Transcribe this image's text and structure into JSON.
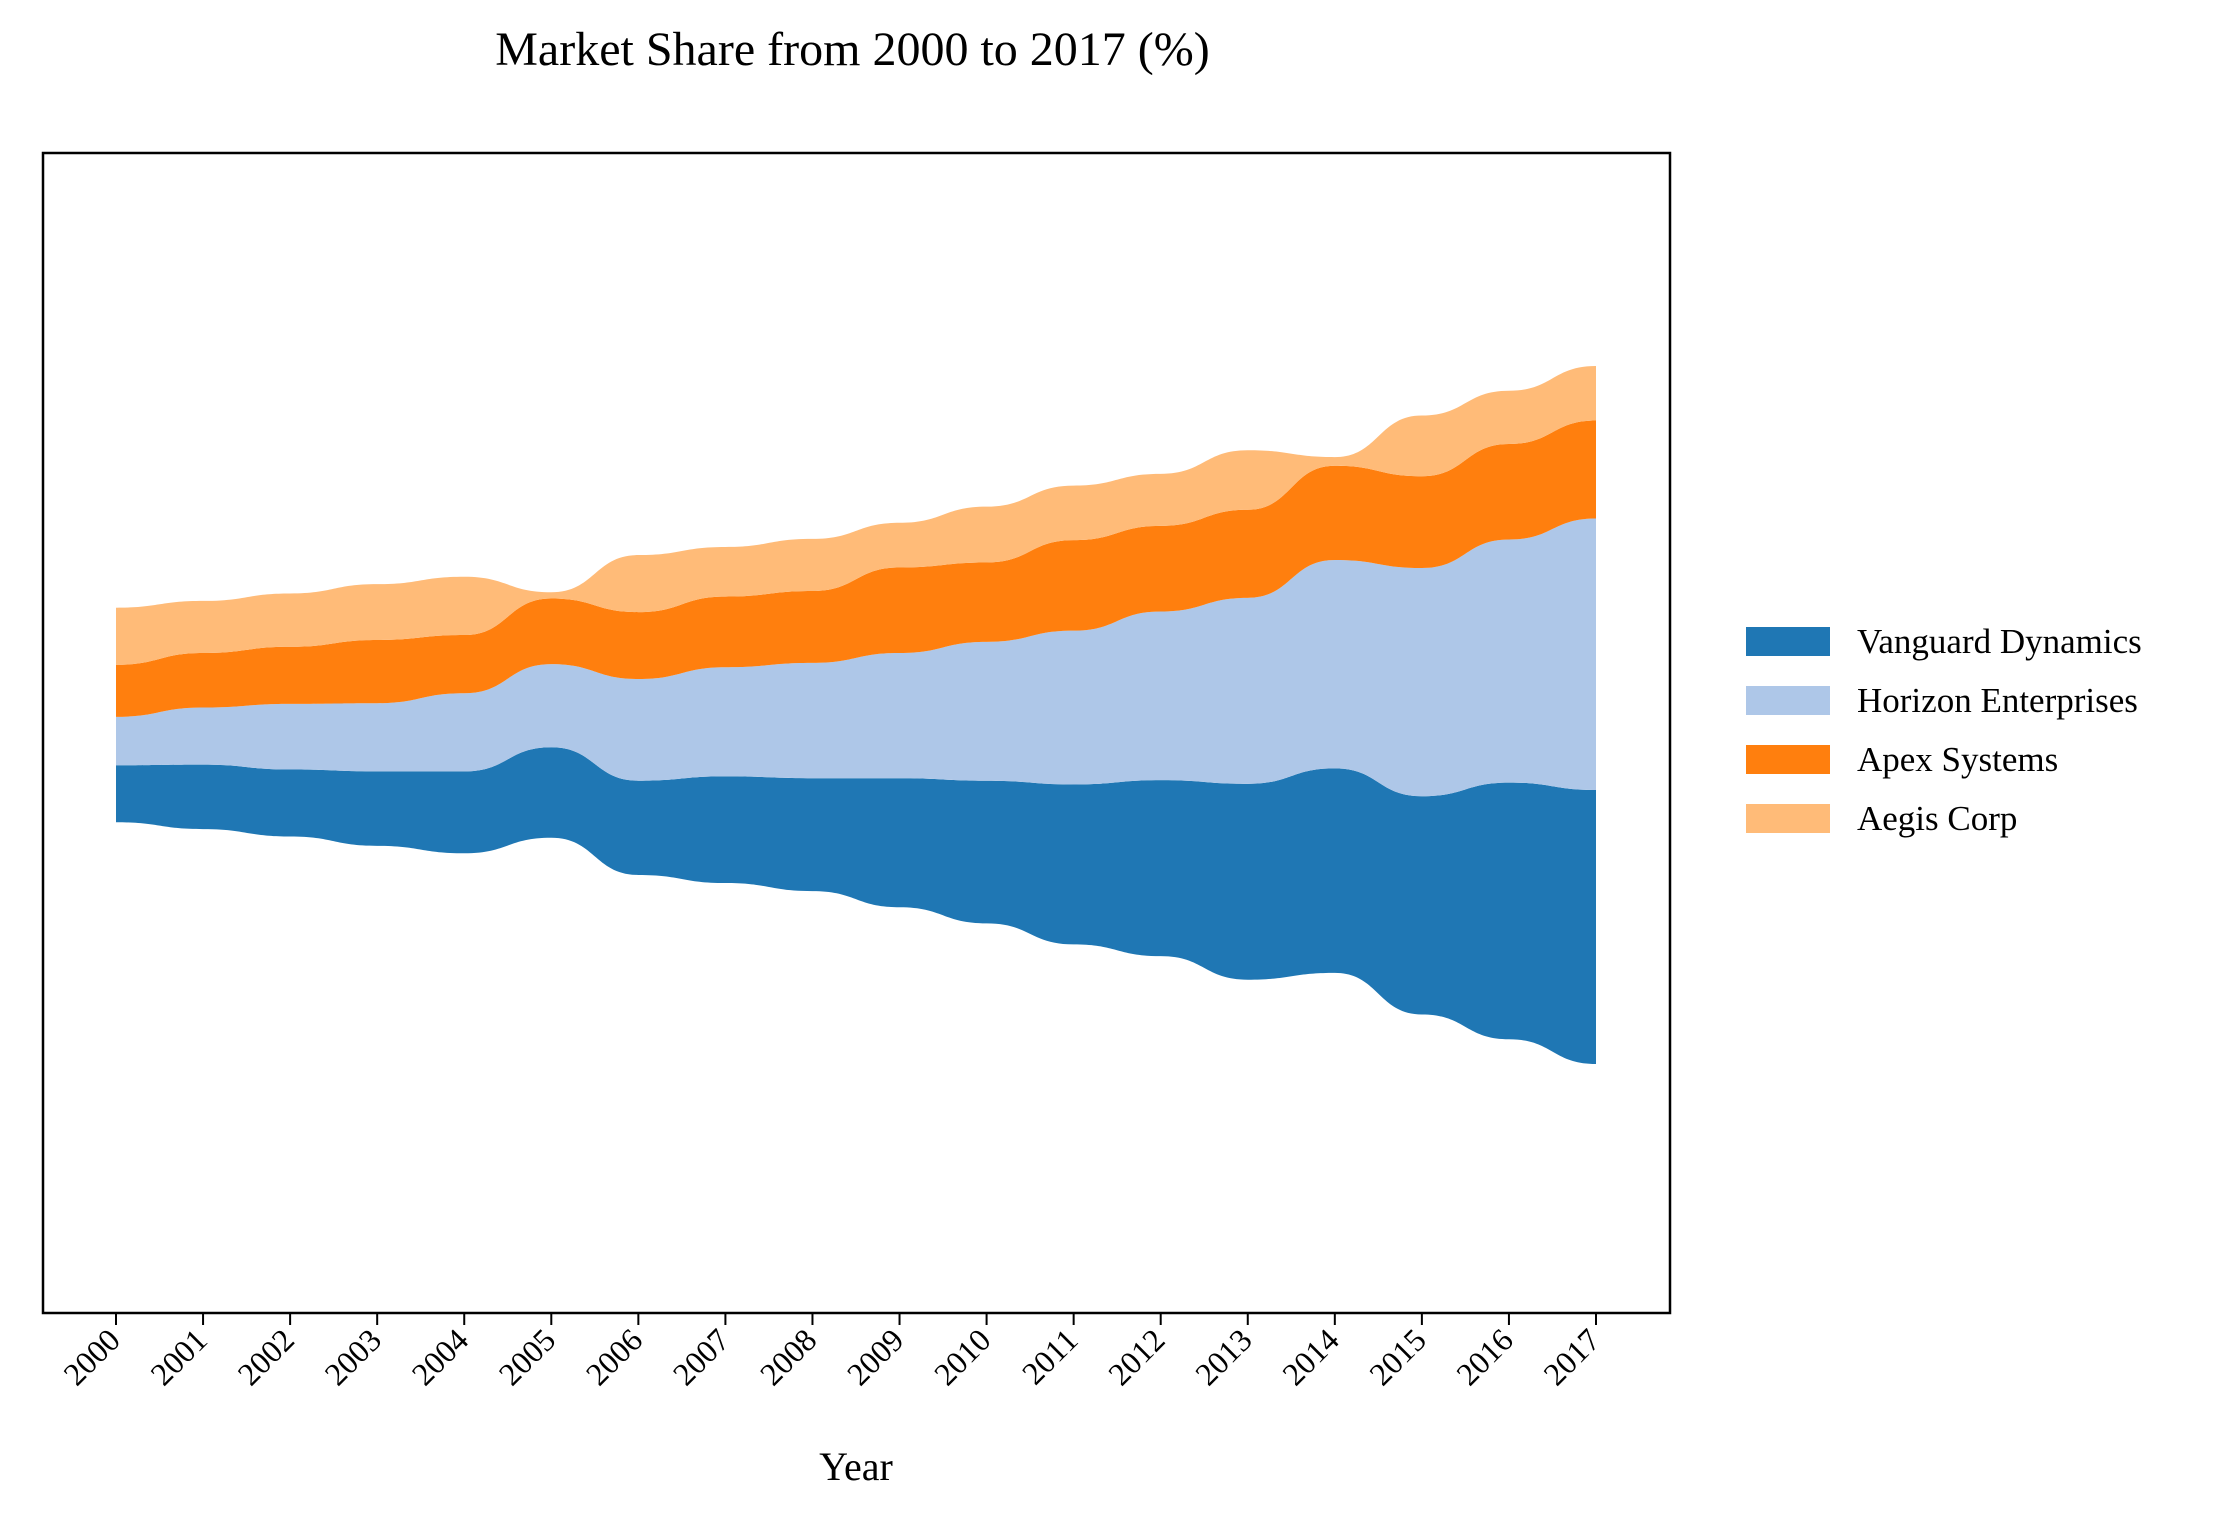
{
  "chart_data": {
    "type": "area",
    "subtype": "streamgraph",
    "title": "Market Share from 2000 to 2017 (%)",
    "xlabel": "Year",
    "ylabel": "",
    "y_ticks_shown": false,
    "grid": false,
    "legend_position": "right",
    "categories": [
      "2000",
      "2001",
      "2002",
      "2003",
      "2004",
      "2005",
      "2006",
      "2007",
      "2008",
      "2009",
      "2010",
      "2011",
      "2012",
      "2013",
      "2014",
      "2015",
      "2016",
      "2017"
    ],
    "series": [
      {
        "name": "Vanguard Dynamics",
        "color": "#1f77b4",
        "values": [
          4.6,
          5.2,
          5.4,
          6.0,
          6.6,
          7.3,
          7.6,
          8.6,
          9.1,
          10.4,
          11.5,
          12.9,
          14.2,
          15.8,
          16.5,
          17.6,
          20.7,
          22.1
        ]
      },
      {
        "name": "Horizon Enterprises",
        "color": "#aec7e8",
        "values": [
          3.9,
          4.6,
          5.3,
          5.5,
          6.3,
          6.7,
          8.2,
          8.8,
          9.3,
          10.1,
          11.2,
          12.4,
          13.6,
          15.0,
          16.8,
          18.4,
          19.6,
          21.9
        ]
      },
      {
        "name": "Apex Systems",
        "color": "#ff7f0e",
        "values": [
          4.2,
          4.4,
          4.6,
          5.1,
          4.7,
          5.3,
          5.4,
          5.7,
          5.8,
          6.9,
          6.4,
          7.3,
          6.9,
          7.1,
          7.6,
          7.4,
          7.7,
          7.9
        ]
      },
      {
        "name": "Aegis Corp",
        "color": "#ffbb78",
        "values": [
          4.6,
          4.2,
          4.3,
          4.5,
          4.7,
          0.5,
          4.6,
          4.0,
          4.2,
          3.6,
          4.5,
          4.4,
          4.2,
          4.8,
          0.7,
          4.9,
          4.3,
          4.4
        ]
      }
    ]
  }
}
